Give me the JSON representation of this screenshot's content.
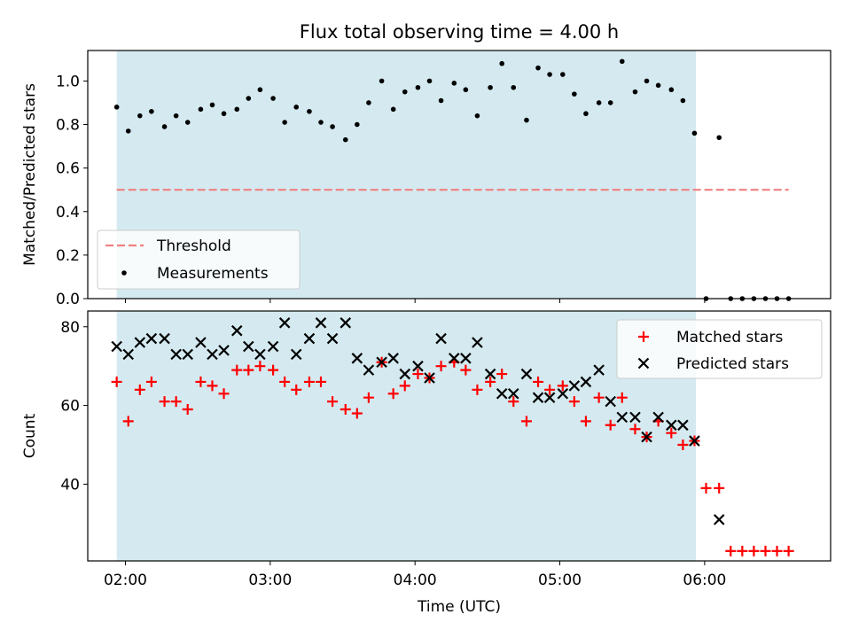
{
  "chart_data": {
    "title": "Flux total observing time = 4.00 h",
    "type": "scatter",
    "x_axis": {
      "label": "Time (UTC)",
      "unit": "hours UTC",
      "range": [
        1.74,
        6.87
      ],
      "ticks": [
        2,
        3,
        4,
        5,
        6
      ],
      "tick_labels": [
        "02:00",
        "03:00",
        "04:00",
        "05:00",
        "06:00"
      ]
    },
    "observing_window": {
      "start": 1.94,
      "end": 5.94,
      "color": "#d4eaf0"
    },
    "top_panel": {
      "ylabel": "Matched/Predicted stars",
      "ylim": [
        0.0,
        1.14
      ],
      "yticks": [
        0.0,
        0.2,
        0.4,
        0.6,
        0.8,
        1.0
      ],
      "ytick_labels": [
        "0.0",
        "0.2",
        "0.4",
        "0.6",
        "0.8",
        "1.0"
      ],
      "legend_position": "lower-left",
      "legend": [
        "Threshold",
        "Measurements"
      ],
      "threshold": {
        "name": "Threshold",
        "value": 0.5,
        "x_range": [
          1.94,
          6.58
        ],
        "color": "#f08080"
      },
      "measurements": {
        "name": "Measurements",
        "color": "#000000",
        "x": [
          1.94,
          2.02,
          2.1,
          2.18,
          2.27,
          2.35,
          2.43,
          2.52,
          2.6,
          2.68,
          2.77,
          2.85,
          2.93,
          3.02,
          3.1,
          3.18,
          3.27,
          3.35,
          3.43,
          3.52,
          3.6,
          3.68,
          3.77,
          3.85,
          3.93,
          4.02,
          4.1,
          4.18,
          4.27,
          4.35,
          4.43,
          4.52,
          4.6,
          4.68,
          4.77,
          4.85,
          4.93,
          5.02,
          5.1,
          5.18,
          5.27,
          5.35,
          5.43,
          5.52,
          5.6,
          5.68,
          5.77,
          5.85,
          5.93,
          6.01,
          6.1,
          6.18,
          6.26,
          6.34,
          6.42,
          6.5,
          6.58
        ],
        "y": [
          0.88,
          0.77,
          0.84,
          0.86,
          0.79,
          0.84,
          0.81,
          0.87,
          0.89,
          0.85,
          0.87,
          0.92,
          0.96,
          0.92,
          0.81,
          0.88,
          0.86,
          0.81,
          0.79,
          0.73,
          0.8,
          0.9,
          1.0,
          0.87,
          0.95,
          0.97,
          1.0,
          0.91,
          0.99,
          0.96,
          0.84,
          0.97,
          1.08,
          0.97,
          0.82,
          1.06,
          1.03,
          1.03,
          0.94,
          0.85,
          0.9,
          0.9,
          1.09,
          0.95,
          1.0,
          0.98,
          0.96,
          0.91,
          0.76,
          0.0,
          0.74,
          0.0,
          0.0,
          0.0,
          0.0,
          0.0,
          0.0
        ]
      }
    },
    "bottom_panel": {
      "ylabel": "Count",
      "ylim": [
        20.5,
        84
      ],
      "yticks": [
        40,
        60,
        80
      ],
      "ytick_labels": [
        "40",
        "60",
        "80"
      ],
      "legend_position": "upper-right",
      "legend": [
        "Matched stars",
        "Predicted stars"
      ],
      "series": [
        {
          "name": "Matched stars",
          "marker": "+",
          "color": "#ff0000",
          "x": [
            1.94,
            2.02,
            2.1,
            2.18,
            2.27,
            2.35,
            2.43,
            2.52,
            2.6,
            2.68,
            2.77,
            2.85,
            2.93,
            3.02,
            3.1,
            3.18,
            3.27,
            3.35,
            3.43,
            3.52,
            3.6,
            3.68,
            3.77,
            3.85,
            3.93,
            4.02,
            4.1,
            4.18,
            4.27,
            4.35,
            4.43,
            4.52,
            4.6,
            4.68,
            4.77,
            4.85,
            4.93,
            5.02,
            5.1,
            5.18,
            5.27,
            5.35,
            5.43,
            5.52,
            5.6,
            5.68,
            5.77,
            5.85,
            5.93,
            6.01,
            6.1,
            6.18,
            6.26,
            6.34,
            6.42,
            6.5,
            6.58
          ],
          "y": [
            66,
            56,
            64,
            66,
            61,
            61,
            59,
            66,
            65,
            63,
            69,
            69,
            70,
            69,
            66,
            64,
            66,
            66,
            61,
            59,
            58,
            62,
            71,
            63,
            65,
            68,
            67,
            70,
            71,
            69,
            64,
            66,
            68,
            61,
            56,
            66,
            64,
            65,
            61,
            56,
            62,
            55,
            62,
            54,
            52,
            56,
            53,
            50,
            51,
            39,
            39,
            23,
            23,
            23,
            23,
            23,
            23
          ]
        },
        {
          "name": "Predicted stars",
          "marker": "x",
          "color": "#000000",
          "x": [
            1.94,
            2.02,
            2.1,
            2.18,
            2.27,
            2.35,
            2.43,
            2.52,
            2.6,
            2.68,
            2.77,
            2.85,
            2.93,
            3.02,
            3.1,
            3.18,
            3.27,
            3.35,
            3.43,
            3.52,
            3.6,
            3.68,
            3.77,
            3.85,
            3.93,
            4.02,
            4.1,
            4.18,
            4.27,
            4.35,
            4.43,
            4.52,
            4.6,
            4.68,
            4.77,
            4.85,
            4.93,
            5.02,
            5.1,
            5.18,
            5.27,
            5.35,
            5.43,
            5.52,
            5.6,
            5.68,
            5.77,
            5.85,
            5.93,
            6.1
          ],
          "y": [
            75,
            73,
            76,
            77,
            77,
            73,
            73,
            76,
            73,
            74,
            79,
            75,
            73,
            75,
            81,
            73,
            77,
            81,
            77,
            81,
            72,
            69,
            71,
            72,
            68,
            70,
            67,
            77,
            72,
            72,
            76,
            68,
            63,
            63,
            68,
            62,
            62,
            63,
            65,
            66,
            69,
            61,
            57,
            57,
            52,
            57,
            55,
            55,
            51,
            31
          ]
        }
      ]
    }
  }
}
